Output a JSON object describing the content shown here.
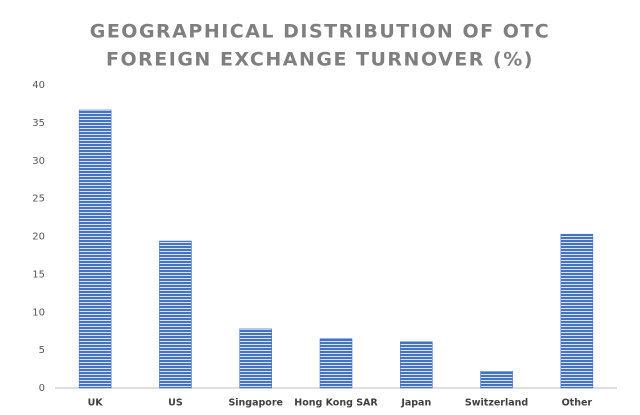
{
  "chart_data": {
    "type": "bar",
    "title": [
      "GEOGRAPHICAL DISTRIBUTION OF OTC",
      "FOREIGN EXCHANGE TURNOVER (%)"
    ],
    "categories": [
      "UK",
      "US",
      "Singapore",
      "Hong Kong SAR",
      "Japan",
      "Switzerland",
      "Other"
    ],
    "values": [
      36.7,
      19.4,
      7.8,
      6.5,
      6.1,
      2.2,
      20.3
    ],
    "color": "#4472c4",
    "ylim": [
      0,
      40
    ],
    "yticks": [
      0,
      5,
      10,
      15,
      20,
      25,
      30,
      35,
      40
    ],
    "grid": false
  }
}
